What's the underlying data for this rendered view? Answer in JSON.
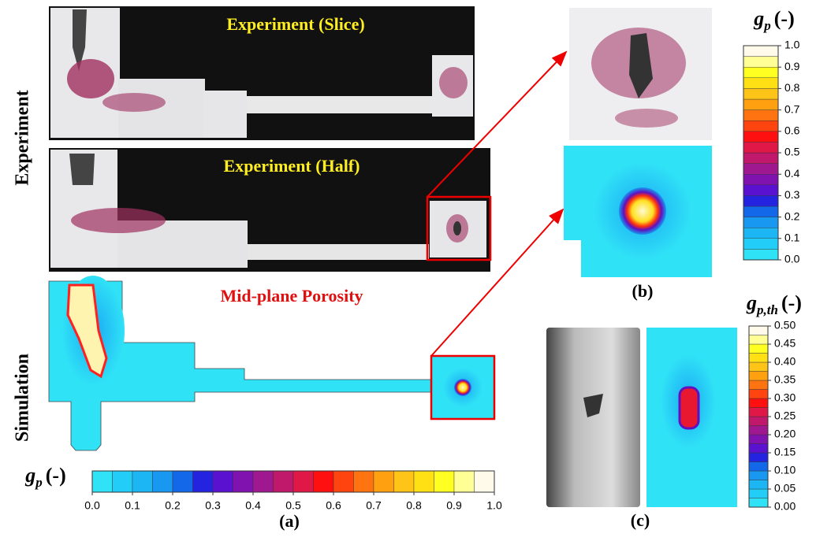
{
  "labels": {
    "experiment": "Experiment",
    "simulation": "Simulation",
    "slice": "Experiment (Slice)",
    "half": "Experiment (Half)",
    "midplane": "Mid-plane Porosity",
    "a": "(a)",
    "b": "(b)",
    "c": "(c)"
  },
  "colorbar_a": {
    "symbol": "g",
    "subscript": "p",
    "unit": "(-)",
    "range": [
      0,
      1
    ],
    "ticks": [
      {
        "value": 0,
        "label": "0.0"
      },
      {
        "value": 0.1,
        "label": "0.1"
      },
      {
        "value": 0.2,
        "label": "0.2"
      },
      {
        "value": 0.3,
        "label": "0.3"
      },
      {
        "value": 0.4,
        "label": "0.4"
      },
      {
        "value": 0.5,
        "label": "0.5"
      },
      {
        "value": 0.6,
        "label": "0.6"
      },
      {
        "value": 0.7,
        "label": "0.7"
      },
      {
        "value": 0.8,
        "label": "0.8"
      },
      {
        "value": 0.9,
        "label": "0.9"
      },
      {
        "value": 1,
        "label": "1.0"
      }
    ]
  },
  "colorbar_b": {
    "symbol": "g",
    "subscript": "p",
    "unit": "(-)",
    "range": [
      0,
      1
    ],
    "ticks": [
      {
        "value": 0,
        "label": "0.0"
      },
      {
        "value": 0.1,
        "label": "0.1"
      },
      {
        "value": 0.2,
        "label": "0.2"
      },
      {
        "value": 0.3,
        "label": "0.3"
      },
      {
        "value": 0.4,
        "label": "0.4"
      },
      {
        "value": 0.5,
        "label": "0.5"
      },
      {
        "value": 0.6,
        "label": "0.6"
      },
      {
        "value": 0.7,
        "label": "0.7"
      },
      {
        "value": 0.8,
        "label": "0.8"
      },
      {
        "value": 0.9,
        "label": "0.9"
      },
      {
        "value": 1,
        "label": "1.0"
      }
    ]
  },
  "colorbar_c": {
    "symbol": "g",
    "subscript": "p,th",
    "unit": "(-)",
    "range": [
      0,
      0.5
    ],
    "ticks": [
      {
        "value": 0,
        "label": "0.00"
      },
      {
        "value": 0.05,
        "label": "0.05"
      },
      {
        "value": 0.1,
        "label": "0.10"
      },
      {
        "value": 0.15,
        "label": "0.15"
      },
      {
        "value": 0.2,
        "label": "0.20"
      },
      {
        "value": 0.25,
        "label": "0.25"
      },
      {
        "value": 0.3,
        "label": "0.30"
      },
      {
        "value": 0.35,
        "label": "0.35"
      },
      {
        "value": 0.4,
        "label": "0.40"
      },
      {
        "value": 0.45,
        "label": "0.45"
      },
      {
        "value": 0.5,
        "label": "0.50"
      }
    ]
  },
  "colors": [
    "#30e2f6",
    "#22cdf7",
    "#1cb6f5",
    "#1898f0",
    "#1268e8",
    "#2424e0",
    "#5a12d0",
    "#8012b0",
    "#a0188f",
    "#c0186a",
    "#e01848",
    "#ff1010",
    "#ff4410",
    "#ff7410",
    "#ffa010",
    "#ffc418",
    "#ffe014",
    "#ffff22",
    "#ffff96",
    "#fffaea"
  ]
}
